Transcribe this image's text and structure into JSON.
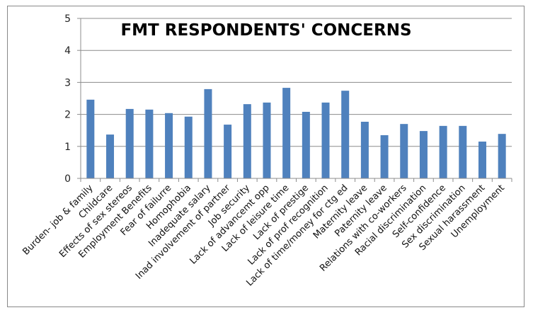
{
  "chart_data": {
    "type": "bar",
    "title": "FMT RESPONDENTS' CONCERNS",
    "xlabel": "",
    "ylabel": "",
    "ylim": [
      0,
      5
    ],
    "yticks": [
      0,
      1,
      2,
      3,
      4,
      5
    ],
    "grid": true,
    "legend": null,
    "bar_color": "#4F81BD",
    "categories": [
      "Burden- job & family",
      "Childcare",
      "Effects of sex stereos",
      "Employment Benefits",
      "Fear of failurre",
      "Homophobia",
      "Inadequate salary",
      "Inad involvement of partner",
      "Job security",
      "Lack of advancemt opp",
      "Lack of leisure time",
      "Lack of prestige",
      "Lack of prof recognition",
      "Lack of time/money for ctg ed",
      "Maternity leave",
      "Paternity leave",
      "Relations with co-workers",
      "Racial discrimination",
      "Self-confidence",
      "Sex discrimination",
      "Sexual harassment",
      "Unemployment"
    ],
    "values": [
      2.46,
      1.37,
      2.17,
      2.15,
      2.04,
      1.93,
      2.79,
      1.68,
      2.32,
      2.37,
      2.83,
      2.08,
      2.37,
      2.74,
      1.77,
      1.35,
      1.7,
      1.48,
      1.64,
      1.64,
      1.15,
      1.39
    ]
  }
}
